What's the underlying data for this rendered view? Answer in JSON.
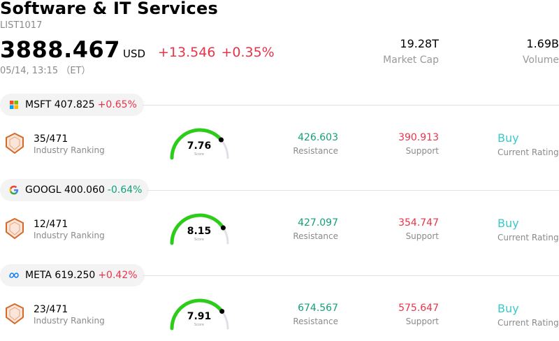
{
  "header": {
    "title": "Software & IT Services",
    "code": "LIST1017",
    "price": "3888.467",
    "currency": "USD",
    "change": "+13.546 +0.35%",
    "timestamp": "05/14, 13:15 （ET）"
  },
  "stats": {
    "market_cap_value": "19.28T",
    "market_cap_label": "Market Cap",
    "volume_value": "1.69B",
    "volume_label": "Volume"
  },
  "colors": {
    "up": "#e8344a",
    "down": "#13a07a",
    "buy": "#3cc8c8",
    "gauge_green": "#2ecc1a",
    "gauge_track": "#e0e0e6"
  },
  "labels": {
    "industry_ranking": "Industry Ranking",
    "score": "Score",
    "resistance": "Resistance",
    "support": "Support",
    "current_rating": "Current Rating"
  },
  "stocks": [
    {
      "ticker": "MSFT",
      "price": "407.825",
      "change": "+0.65%",
      "direction": "up",
      "logo": "microsoft-logo",
      "rank": "35/471",
      "score": "7.76",
      "score_fraction": 0.776,
      "resistance": "426.603",
      "support": "390.913",
      "rating": "Buy"
    },
    {
      "ticker": "GOOGL",
      "price": "400.060",
      "change": "-0.64%",
      "direction": "down",
      "logo": "google-logo",
      "rank": "12/471",
      "score": "8.15",
      "score_fraction": 0.815,
      "resistance": "427.097",
      "support": "354.747",
      "rating": "Buy"
    },
    {
      "ticker": "META",
      "price": "619.250",
      "change": "+0.42%",
      "direction": "up",
      "logo": "meta-logo",
      "rank": "23/471",
      "score": "7.91",
      "score_fraction": 0.791,
      "resistance": "674.567",
      "support": "575.647",
      "rating": "Buy"
    }
  ]
}
